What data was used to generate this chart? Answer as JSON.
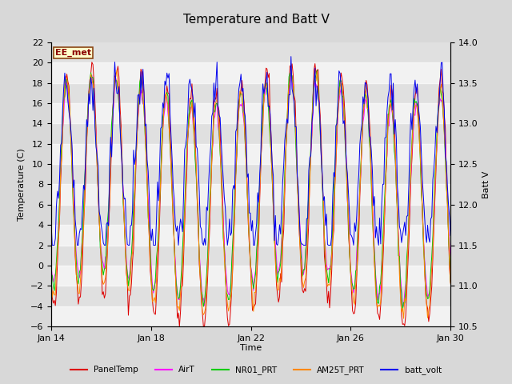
{
  "title": "Temperature and Batt V",
  "xlabel": "Time",
  "ylabel_left": "Temperature (C)",
  "ylabel_right": "Batt V",
  "ylim_left": [
    -6,
    22
  ],
  "ylim_right": [
    10.5,
    14.0
  ],
  "xlim_days": [
    0,
    16
  ],
  "xtick_labels": [
    "Jan 14",
    "Jan 18",
    "Jan 22",
    "Jan 26",
    "Jan 30"
  ],
  "xtick_positions": [
    0,
    4,
    8,
    12,
    16
  ],
  "series_colors": {
    "PanelTemp": "#dd0000",
    "AirT": "#ff00ff",
    "NR01_PRT": "#00cc00",
    "AM25T_PRT": "#ff8800",
    "batt_volt": "#0000ee"
  },
  "station_label": "EE_met",
  "bg_color": "#d8d8d8",
  "plot_bg_color": "#e0e0e0",
  "band_color": "#f0f0f0",
  "title_fontsize": 11,
  "axis_fontsize": 8,
  "tick_fontsize": 8,
  "lw": 0.7
}
